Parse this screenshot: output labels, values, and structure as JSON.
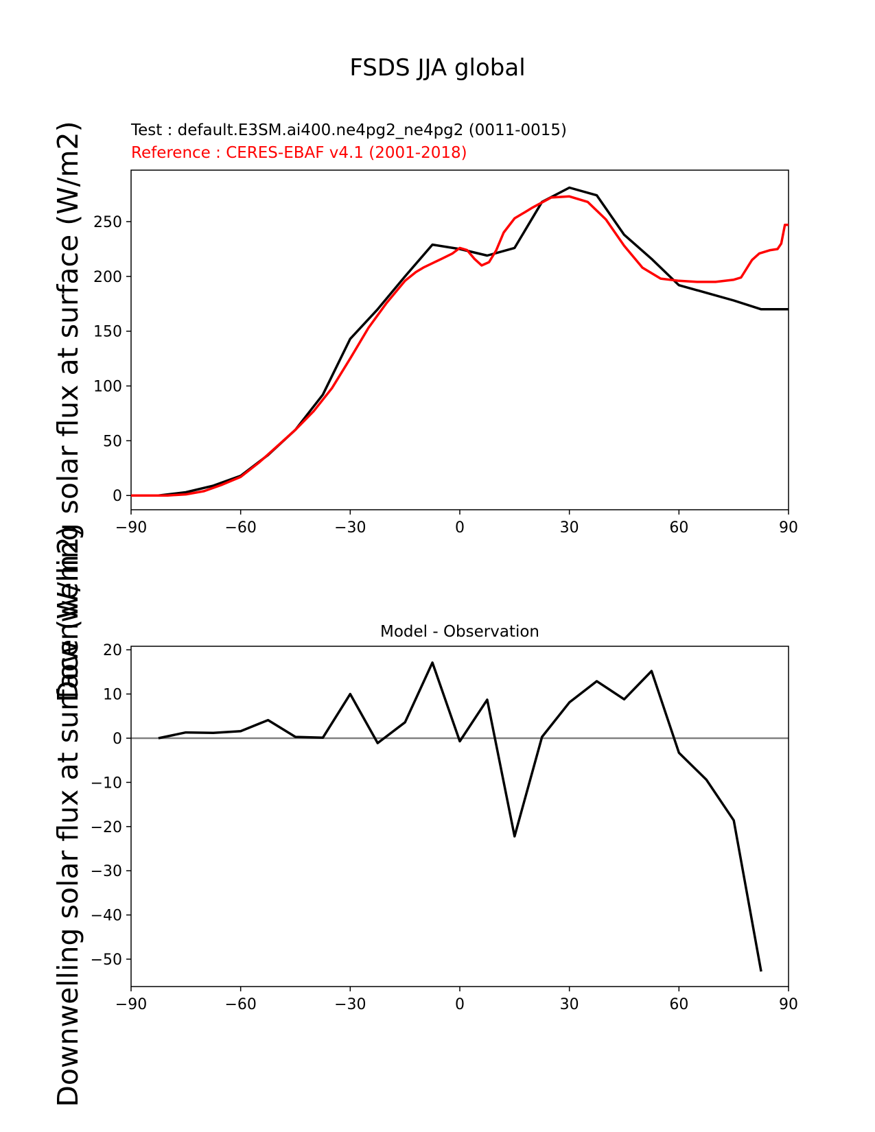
{
  "figure": {
    "suptitle": "FSDS JJA global"
  },
  "chart_data": [
    {
      "type": "line",
      "title": "",
      "test_label": "Test : default.E3SM.ai400.ne4pg2_ne4pg2 (0011-0015)",
      "reference_label": "Reference : CERES-EBAF v4.1 (2001-2018)",
      "ylabel": "Downwelling solar flux at surface (W/m2)",
      "xlabel": "",
      "xlim": [
        -90,
        90
      ],
      "ylim": [
        -13,
        297
      ],
      "xticks": [
        -90,
        -60,
        -30,
        0,
        30,
        60,
        90
      ],
      "xtick_labels": [
        "−90",
        "−60",
        "−30",
        "0",
        "30",
        "60",
        "90"
      ],
      "yticks": [
        0,
        50,
        100,
        150,
        200,
        250
      ],
      "ytick_labels": [
        "0",
        "50",
        "100",
        "150",
        "200",
        "250"
      ],
      "series": [
        {
          "role": "test",
          "color": "#000000",
          "x": [
            -90,
            -82.5,
            -75,
            -67.5,
            -60,
            -52.5,
            -45,
            -37.5,
            -30,
            -22.5,
            -15,
            -7.5,
            0,
            7.5,
            15,
            22.5,
            30,
            37.5,
            45,
            52.5,
            60,
            67.5,
            75,
            82.5,
            90
          ],
          "y": [
            0,
            0,
            3,
            9,
            18,
            37,
            60,
            92,
            143,
            170,
            200,
            229,
            225,
            219,
            226,
            268,
            281,
            274,
            238,
            216,
            192,
            185,
            178,
            170,
            170
          ]
        },
        {
          "role": "reference",
          "color": "#ff0000",
          "x": [
            -90,
            -85,
            -80,
            -75,
            -70,
            -65,
            -60,
            -55,
            -50,
            -45,
            -40,
            -35,
            -30,
            -25,
            -20,
            -15,
            -12,
            -10,
            -5,
            -2,
            0,
            2,
            4,
            6,
            8,
            10,
            12,
            15,
            18,
            20,
            25,
            30,
            35,
            40,
            45,
            50,
            55,
            60,
            65,
            70,
            75,
            77,
            80,
            82,
            85,
            87,
            88,
            89,
            90
          ],
          "y": [
            0,
            0,
            0,
            1,
            4,
            10,
            17,
            30,
            45,
            60,
            77,
            98,
            125,
            153,
            176,
            196,
            204,
            208,
            216,
            221,
            226,
            224,
            216,
            210,
            213,
            224,
            240,
            253,
            259,
            263,
            272,
            273,
            268,
            252,
            228,
            208,
            198,
            196,
            195,
            195,
            197,
            199,
            215,
            221,
            224,
            225,
            230,
            247,
            247
          ]
        }
      ]
    },
    {
      "type": "line",
      "title": "Model - Observation",
      "ylabel": "Downwelling solar flux at surface (W/m2)",
      "xlabel": "",
      "xlim": [
        -90,
        90
      ],
      "ylim": [
        -56.2,
        20.8
      ],
      "xticks": [
        -90,
        -60,
        -30,
        0,
        30,
        60,
        90
      ],
      "xtick_labels": [
        "−90",
        "−60",
        "−30",
        "0",
        "30",
        "60",
        "90"
      ],
      "yticks": [
        20,
        10,
        0,
        -10,
        -20,
        -30,
        -40,
        -50
      ],
      "ytick_labels": [
        "20",
        "10",
        "0",
        "−10",
        "−20",
        "−30",
        "−40",
        "−50"
      ],
      "zero_line_color": "#808080",
      "series": [
        {
          "color": "#000000",
          "x": [
            -82.5,
            -75,
            -67.5,
            -60,
            -52.5,
            -45,
            -37.5,
            -30,
            -22.5,
            -15,
            -7.5,
            0,
            7.5,
            15,
            22.5,
            30,
            37.5,
            45,
            52.5,
            60,
            67.5,
            75,
            82.5
          ],
          "y": [
            0,
            1.3,
            1.2,
            1.6,
            4.1,
            0.3,
            0.1,
            10,
            -1.1,
            3.6,
            17.1,
            -0.7,
            8.7,
            -22.2,
            0.3,
            8.1,
            12.9,
            8.8,
            15.2,
            -3.3,
            -9.4,
            -18.6,
            -52.8
          ]
        }
      ]
    }
  ]
}
